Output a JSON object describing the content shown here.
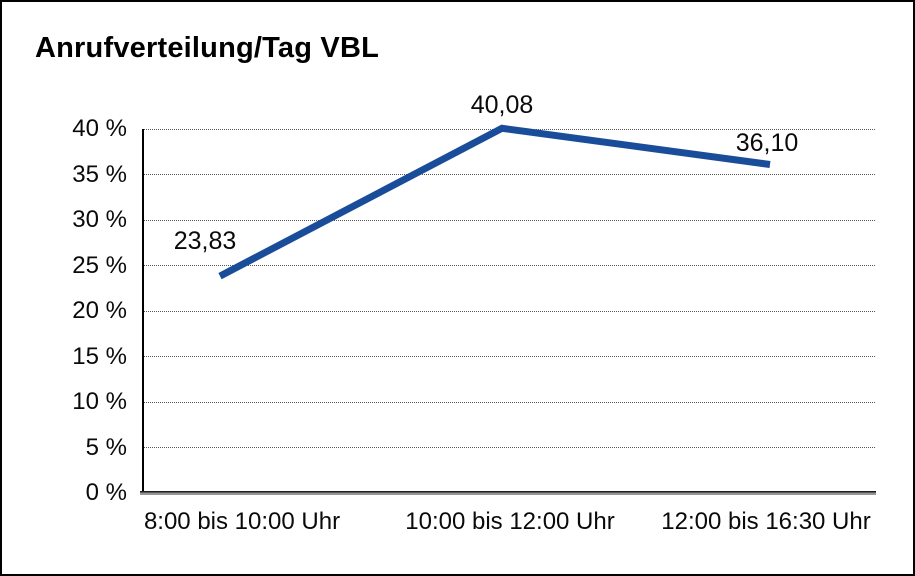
{
  "window": {
    "background_color": "#ffffff",
    "border_color": "#000000"
  },
  "chart_data": {
    "type": "line",
    "title": "Anrufverteilung/Tag VBL",
    "categories": [
      "8:00 bis 10:00 Uhr",
      "10:00 bis 12:00 Uhr",
      "12:00 bis 16:30 Uhr"
    ],
    "values": [
      23.83,
      40.08,
      36.1
    ],
    "value_labels": [
      "23,83",
      "40,08",
      "36,10"
    ],
    "xlabel": "",
    "ylabel": "",
    "ylim": [
      0,
      40
    ],
    "ytick_step": 5,
    "ytick_labels_top_to_bottom": [
      "40 %",
      "35 %",
      "30 %",
      "25 %",
      "20 %",
      "15 %",
      "10 %",
      "5 %",
      "0 %"
    ],
    "grid": "horizontal-dotted",
    "legend": "none",
    "line_color": "#1A4D99"
  }
}
